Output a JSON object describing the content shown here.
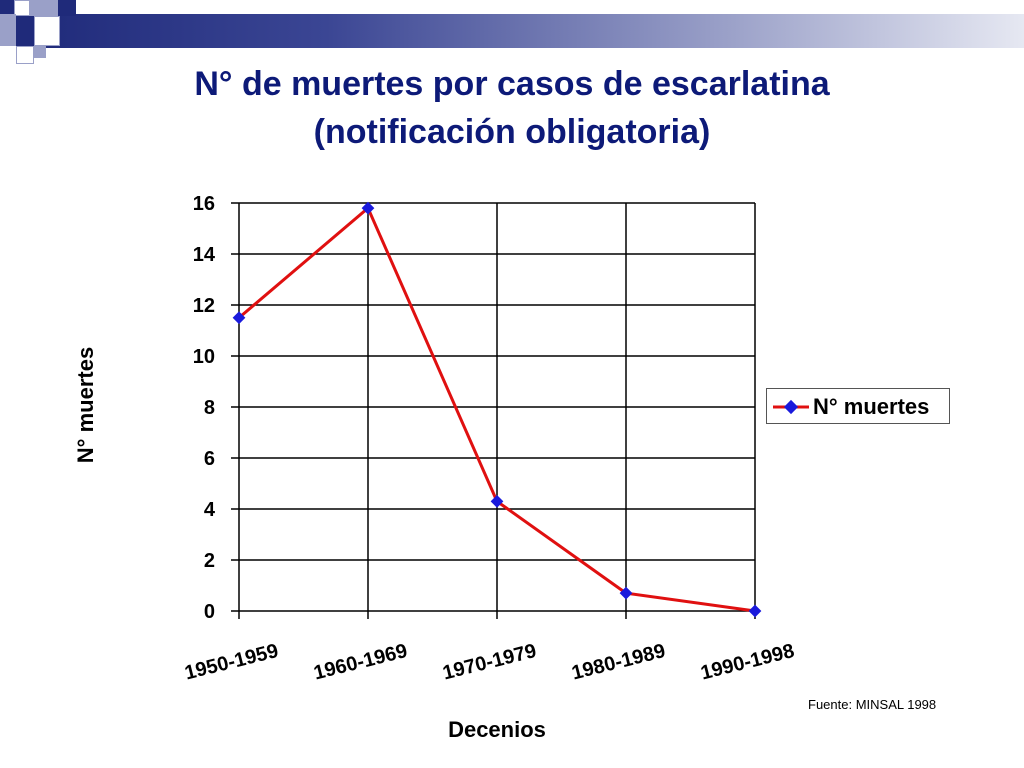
{
  "colors": {
    "series": "#e01010",
    "marker": "#1a1adc",
    "title": "#0d1a78",
    "deco_dark": "#1f2a7a",
    "deco_light": "#9aa0c8"
  },
  "title": {
    "line1": "N° de muertes por casos de escarlatina",
    "line2": "(notificación obligatoria)"
  },
  "source": "Fuente: MINSAL 1998",
  "chart_data": {
    "type": "line",
    "title": "N° de muertes por casos de escarlatina (notificación obligatoria)",
    "xlabel": "Decenios",
    "ylabel": "N° muertes",
    "categories": [
      "1950-1959",
      "1960-1969",
      "1970-1979",
      "1980-1989",
      "1990-1998"
    ],
    "series": [
      {
        "name": "N° muertes",
        "values": [
          11.5,
          15.8,
          4.3,
          0.7,
          0.0
        ]
      }
    ],
    "ylim": [
      0,
      16
    ],
    "yticks": [
      "0",
      "2",
      "4",
      "6",
      "8",
      "10",
      "12",
      "14",
      "16"
    ],
    "grid": true,
    "legend": "right"
  }
}
